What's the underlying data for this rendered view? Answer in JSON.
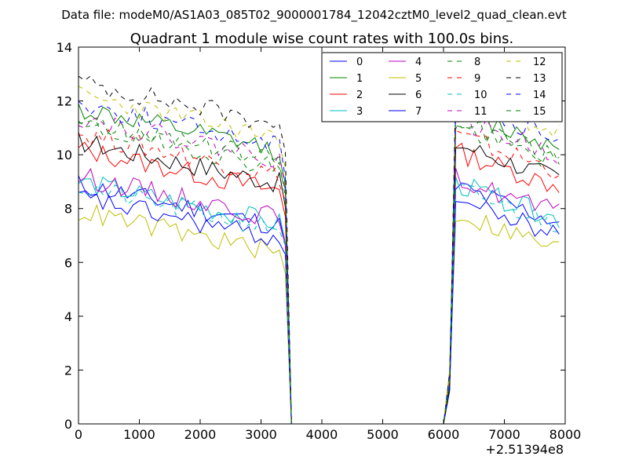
{
  "figure": {
    "suptitle": "Data file: modeM0/AS1A03_085T02_9000001784_12042cztM0_level2_quad_clean.evt"
  },
  "chart_data": {
    "type": "line",
    "title": "Quadrant 1 module wise count rates with 100.0s bins.",
    "xlabel": "",
    "ylabel": "",
    "xlim": [
      0,
      8000
    ],
    "ylim": [
      0,
      14
    ],
    "xticks": [
      "0",
      "1000",
      "2000",
      "3000",
      "4000",
      "5000",
      "6000",
      "7000",
      "8000"
    ],
    "yticks": [
      "0",
      "2",
      "4",
      "6",
      "8",
      "10",
      "12",
      "14"
    ],
    "x_offset_label": "+2.51394e8",
    "x": [
      0,
      100,
      200,
      300,
      400,
      500,
      600,
      700,
      800,
      900,
      1000,
      1100,
      1200,
      1300,
      1400,
      1500,
      1600,
      1700,
      1800,
      1900,
      2000,
      2100,
      2200,
      2300,
      2400,
      2500,
      2600,
      2700,
      2800,
      2900,
      3000,
      3100,
      3200,
      3300,
      3400,
      3500,
      3600,
      3700,
      3800,
      3900,
      4000,
      4100,
      4200,
      4300,
      4400,
      4500,
      4600,
      4700,
      4800,
      4900,
      5000,
      5100,
      5200,
      5300,
      5400,
      5500,
      5600,
      5700,
      5800,
      5900,
      6000,
      6100,
      6200,
      6300,
      6400,
      6500,
      6600,
      6700,
      6800,
      6900,
      7000,
      7100,
      7200,
      7300,
      7400,
      7500,
      7600,
      7700,
      7800,
      7900
    ],
    "legend_position": "top-right",
    "series": [
      {
        "name": "0",
        "color": "#0000ff",
        "dash": "solid",
        "base_level": 7.3,
        "seed": 11
      },
      {
        "name": "1",
        "color": "#008000",
        "dash": "solid",
        "base_level": 10.1,
        "seed": 12
      },
      {
        "name": "2",
        "color": "#ff0000",
        "dash": "solid",
        "base_level": 8.6,
        "seed": 13
      },
      {
        "name": "3",
        "color": "#00bfbf",
        "dash": "solid",
        "base_level": 7.4,
        "seed": 14
      },
      {
        "name": "4",
        "color": "#bf00bf",
        "dash": "solid",
        "base_level": 7.6,
        "seed": 15
      },
      {
        "name": "5",
        "color": "#bfbf00",
        "dash": "solid",
        "base_level": 6.3,
        "seed": 16
      },
      {
        "name": "6",
        "color": "#000000",
        "dash": "solid",
        "base_level": 8.9,
        "seed": 17
      },
      {
        "name": "7",
        "color": "#0000ff",
        "dash": "solid",
        "base_level": 6.8,
        "seed": 18
      },
      {
        "name": "8",
        "color": "#008000",
        "dash": "dashed",
        "base_level": 9.5,
        "seed": 19
      },
      {
        "name": "9",
        "color": "#ff0000",
        "dash": "dashed",
        "base_level": 9.2,
        "seed": 20
      },
      {
        "name": "10",
        "color": "#00bfbf",
        "dash": "dashed",
        "base_level": 7.2,
        "seed": 21
      },
      {
        "name": "11",
        "color": "#bf00bf",
        "dash": "dashed",
        "base_level": 9.8,
        "seed": 22
      },
      {
        "name": "12",
        "color": "#bfbf00",
        "dash": "dashed",
        "base_level": 10.6,
        "seed": 23
      },
      {
        "name": "13",
        "color": "#000000",
        "dash": "dashed",
        "base_level": 11.1,
        "seed": 24
      },
      {
        "name": "14",
        "color": "#0000ff",
        "dash": "dashed",
        "base_level": 10.3,
        "seed": 25
      },
      {
        "name": "15",
        "color": "#008000",
        "dash": "dashed",
        "base_level": 9.7,
        "seed": 26
      }
    ],
    "gap": {
      "start": 3500,
      "end": 6100,
      "value": 0
    }
  }
}
